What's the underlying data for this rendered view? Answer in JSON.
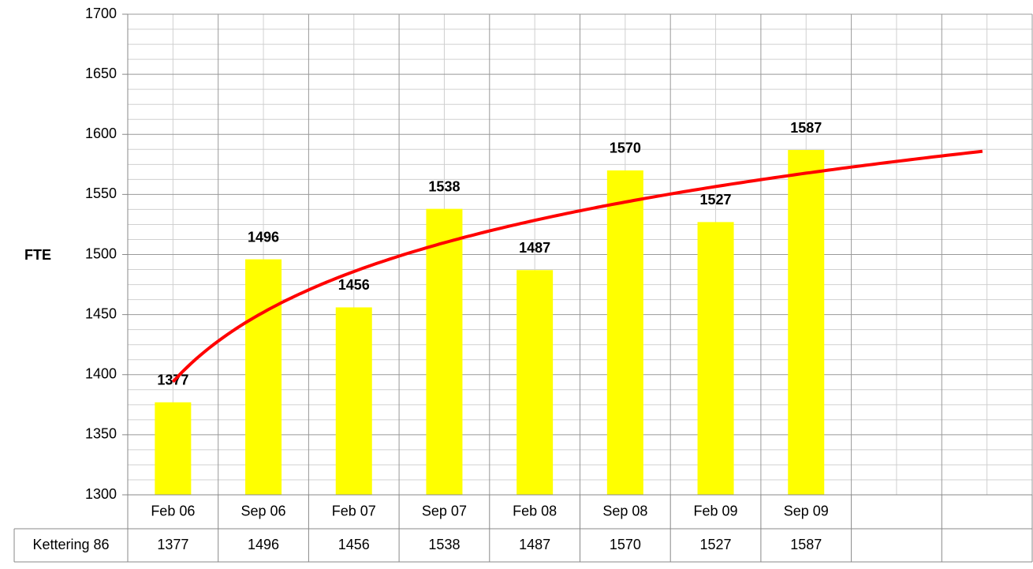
{
  "chart_data": {
    "type": "bar",
    "y_label": "FTE",
    "categories": [
      "Feb 06",
      "Sep 06",
      "Feb 07",
      "Sep 07",
      "Feb 08",
      "Sep 08",
      "Feb 09",
      "Sep 09",
      null,
      null
    ],
    "series": [
      {
        "name": "Kettering 86",
        "color": "#ffff00",
        "values": [
          1377,
          1496,
          1456,
          1538,
          1487,
          1570,
          1527,
          1587,
          null,
          null
        ]
      }
    ],
    "ylim": [
      1300,
      1700
    ],
    "yticks": [
      1300,
      1350,
      1400,
      1450,
      1500,
      1550,
      1600,
      1650,
      1700
    ],
    "grid": true,
    "minor_grid": true,
    "data_labels": true,
    "data_table": true,
    "trendline": "logarithmic",
    "trendline_color": "#ff0000"
  }
}
